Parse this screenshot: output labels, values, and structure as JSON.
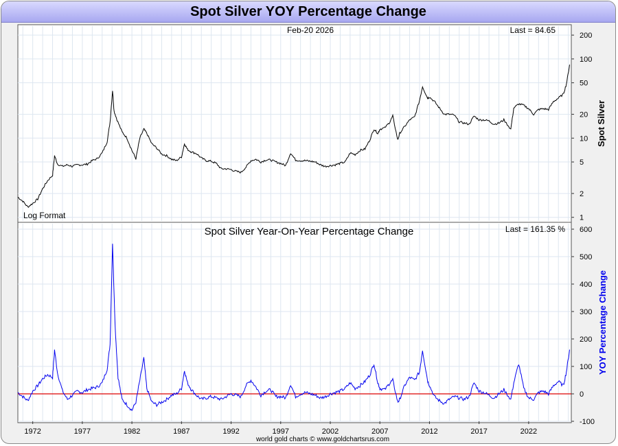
{
  "title": "Spot Silver YOY Percentage Change",
  "footer": "world gold charts © www.goldchartsrus.com",
  "colors": {
    "price_line": "#000000",
    "yoy_line": "#0000ee",
    "zero_line": "#dd0000",
    "title_bar": "#b8b8f8",
    "grid": "#dde6f0"
  },
  "chart_data": [
    {
      "type": "line",
      "name": "price-panel",
      "date_label": "Feb-20  2026",
      "last_label": "Last = 84.65",
      "scale_label": "Log Format",
      "ylabel": "Spot Silver",
      "yscale": "log",
      "ylim": [
        0.9,
        260
      ],
      "yticks": [
        "200",
        "100",
        "50",
        "20",
        "10",
        "5",
        "2",
        "1"
      ],
      "yticks_values": [
        200,
        100,
        50,
        20,
        10,
        5,
        2,
        1
      ],
      "x": [
        1970.5,
        1971.0,
        1971.5,
        1972.0,
        1972.5,
        1973.0,
        1973.5,
        1974.0,
        1974.2,
        1974.5,
        1975.0,
        1975.5,
        1976.0,
        1976.5,
        1977.0,
        1977.5,
        1978.0,
        1978.5,
        1979.0,
        1979.5,
        1979.8,
        1980.05,
        1980.2,
        1980.5,
        1981.0,
        1981.5,
        1982.0,
        1982.4,
        1982.8,
        1983.2,
        1983.5,
        1984.0,
        1984.5,
        1985.0,
        1985.5,
        1986.0,
        1986.5,
        1987.0,
        1987.3,
        1987.6,
        1988.0,
        1988.5,
        1989.0,
        1989.5,
        1990.0,
        1990.5,
        1991.0,
        1991.5,
        1992.0,
        1992.5,
        1993.0,
        1993.5,
        1994.0,
        1994.5,
        1995.0,
        1995.5,
        1996.0,
        1996.5,
        1997.0,
        1997.5,
        1998.0,
        1998.5,
        1999.0,
        1999.5,
        2000.0,
        2000.5,
        2001.0,
        2001.5,
        2002.0,
        2002.5,
        2003.0,
        2003.5,
        2004.0,
        2004.5,
        2005.0,
        2005.5,
        2006.0,
        2006.4,
        2006.8,
        2007.0,
        2007.5,
        2008.0,
        2008.3,
        2008.8,
        2009.0,
        2009.5,
        2010.0,
        2010.5,
        2011.0,
        2011.3,
        2011.8,
        2012.0,
        2012.5,
        2013.0,
        2013.5,
        2014.0,
        2014.5,
        2015.0,
        2015.5,
        2016.0,
        2016.5,
        2017.0,
        2017.5,
        2018.0,
        2018.5,
        2019.0,
        2019.5,
        2020.2,
        2020.5,
        2021.0,
        2021.5,
        2022.0,
        2022.5,
        2023.0,
        2023.5,
        2024.0,
        2024.5,
        2025.0,
        2025.5,
        2025.8,
        2026.13
      ],
      "values": [
        1.8,
        1.6,
        1.35,
        1.5,
        1.7,
        2.3,
        2.9,
        3.4,
        6.0,
        4.7,
        4.4,
        4.6,
        4.4,
        4.6,
        4.6,
        4.7,
        5.2,
        5.5,
        6.5,
        9.0,
        16.0,
        40.0,
        22.0,
        17.0,
        12.0,
        10.0,
        7.0,
        5.5,
        10.0,
        13.0,
        11.5,
        8.5,
        7.5,
        6.3,
        6.0,
        5.4,
        5.2,
        5.8,
        8.5,
        7.2,
        6.7,
        6.4,
        5.6,
        5.2,
        5.1,
        4.8,
        4.1,
        4.1,
        4.0,
        3.8,
        3.7,
        4.3,
        5.2,
        5.4,
        5.0,
        5.3,
        5.3,
        5.0,
        4.8,
        4.5,
        6.5,
        5.3,
        5.2,
        5.2,
        5.1,
        5.0,
        4.6,
        4.4,
        4.5,
        4.6,
        4.8,
        5.0,
        6.5,
        6.2,
        7.0,
        7.3,
        9.6,
        13.0,
        11.5,
        13.0,
        13.5,
        16.0,
        19.0,
        9.5,
        11.5,
        14.0,
        17.0,
        18.5,
        30.0,
        45.0,
        32.0,
        33.0,
        29.0,
        24.0,
        20.0,
        20.0,
        19.5,
        16.0,
        15.5,
        15.0,
        19.0,
        17.0,
        17.0,
        16.5,
        15.0,
        15.5,
        17.0,
        13.0,
        24.0,
        27.0,
        26.0,
        23.5,
        20.0,
        23.0,
        23.5,
        23.0,
        29.0,
        32.0,
        36.0,
        48.0,
        84.65
      ]
    },
    {
      "type": "line",
      "name": "yoy-panel",
      "title": "Spot Silver Year-On-Year Percentage Change",
      "last_label": "Last =  161.35 %",
      "ylabel": "YOY Percentage Change",
      "ylim": [
        -100,
        620
      ],
      "yticks": [
        "600",
        "500",
        "400",
        "300",
        "200",
        "100",
        "0",
        "-100"
      ],
      "yticks_values": [
        600,
        500,
        400,
        300,
        200,
        100,
        0,
        -100
      ],
      "zero_line": 0,
      "xticks": [
        "1972",
        "1977",
        "1982",
        "1987",
        "1992",
        "1997",
        "2002",
        "2007",
        "2012",
        "2017",
        "2022"
      ],
      "xticks_values": [
        1972,
        1977,
        1982,
        1987,
        1992,
        1997,
        2002,
        2007,
        2012,
        2017,
        2022
      ],
      "xlim": [
        1970.5,
        2026.3
      ],
      "x": [
        1970.5,
        1971.0,
        1971.5,
        1972.0,
        1972.5,
        1973.0,
        1973.5,
        1974.0,
        1974.2,
        1974.5,
        1975.0,
        1975.5,
        1976.0,
        1976.5,
        1977.0,
        1977.5,
        1978.0,
        1978.5,
        1979.0,
        1979.5,
        1979.8,
        1980.05,
        1980.3,
        1980.6,
        1981.0,
        1981.5,
        1982.0,
        1982.4,
        1982.8,
        1983.2,
        1983.5,
        1984.0,
        1984.5,
        1985.0,
        1985.5,
        1986.0,
        1986.5,
        1987.0,
        1987.3,
        1987.6,
        1988.0,
        1988.5,
        1989.0,
        1989.5,
        1990.0,
        1990.5,
        1991.0,
        1991.5,
        1992.0,
        1992.5,
        1993.0,
        1993.5,
        1994.0,
        1994.5,
        1995.0,
        1995.5,
        1996.0,
        1996.5,
        1997.0,
        1997.5,
        1998.0,
        1998.5,
        1999.0,
        1999.5,
        2000.0,
        2000.5,
        2001.0,
        2001.5,
        2002.0,
        2002.5,
        2003.0,
        2003.5,
        2004.0,
        2004.5,
        2005.0,
        2005.5,
        2006.0,
        2006.4,
        2006.8,
        2007.0,
        2007.5,
        2008.0,
        2008.3,
        2008.8,
        2009.0,
        2009.5,
        2010.0,
        2010.5,
        2011.0,
        2011.3,
        2011.8,
        2012.0,
        2012.5,
        2013.0,
        2013.5,
        2014.0,
        2014.5,
        2015.0,
        2015.5,
        2016.0,
        2016.5,
        2017.0,
        2017.5,
        2018.0,
        2018.5,
        2019.0,
        2019.5,
        2020.2,
        2020.5,
        2021.0,
        2021.5,
        2022.0,
        2022.5,
        2023.0,
        2023.5,
        2024.0,
        2024.5,
        2025.0,
        2025.5,
        2025.8,
        2026.13
      ],
      "values": [
        5,
        -10,
        -25,
        10,
        30,
        55,
        70,
        60,
        160,
        75,
        10,
        -20,
        -5,
        10,
        5,
        15,
        20,
        25,
        40,
        90,
        180,
        550,
        250,
        60,
        -20,
        -40,
        -60,
        -30,
        50,
        130,
        20,
        -30,
        -40,
        -30,
        -20,
        -5,
        0,
        20,
        85,
        40,
        15,
        -5,
        -20,
        -15,
        -10,
        -15,
        -20,
        -10,
        0,
        -5,
        -10,
        30,
        50,
        25,
        -5,
        10,
        15,
        -10,
        -10,
        -15,
        35,
        -10,
        0,
        5,
        0,
        -5,
        -15,
        -10,
        0,
        5,
        10,
        20,
        40,
        20,
        30,
        45,
        70,
        110,
        40,
        20,
        15,
        40,
        50,
        -30,
        -20,
        30,
        60,
        50,
        80,
        160,
        50,
        30,
        -10,
        -25,
        -35,
        -20,
        -10,
        -15,
        -20,
        -10,
        40,
        10,
        5,
        -5,
        -15,
        0,
        15,
        -20,
        40,
        110,
        20,
        -15,
        -20,
        5,
        10,
        0,
        30,
        45,
        30,
        80,
        161.35
      ]
    }
  ]
}
